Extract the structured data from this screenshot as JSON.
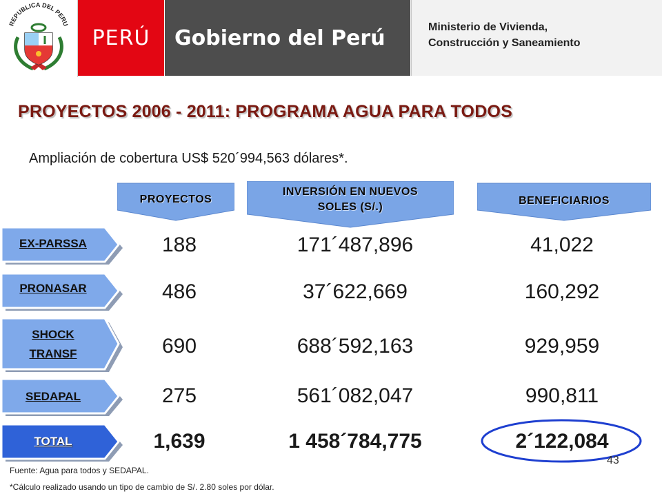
{
  "header": {
    "emblem_text": "REPUBLICA DEL PERU",
    "peru_label": "PERÚ",
    "gobierno_label": "Gobierno del Perú",
    "ministry_line1": "Ministerio de Vivienda,",
    "ministry_line2": "Construcción y Saneamiento"
  },
  "title": "PROYECTOS 2006 - 2011: PROGRAMA AGUA PARA TODOS",
  "subtitle": "Ampliación de cobertura US$ 520´994,563 dólares*.",
  "columns": {
    "proyectos": "PROYECTOS",
    "inversion_line1": "INVERSIÓN EN NUEVOS",
    "inversion_line2": "SOLES (S/.)",
    "beneficiarios": "BENEFICIARIOS"
  },
  "rows": [
    {
      "label": "EX-PARSSA",
      "proyectos": "188",
      "inversion": "171´487,896",
      "beneficiarios": "41,022"
    },
    {
      "label": "PRONASAR",
      "proyectos": "486",
      "inversion": "37´622,669",
      "beneficiarios": "160,292"
    },
    {
      "label_line1": "SHOCK",
      "label_line2": "TRANSF",
      "proyectos": "690",
      "inversion": "688´592,163",
      "beneficiarios": "929,959"
    },
    {
      "label": "SEDAPAL",
      "proyectos": "275",
      "inversion": "561´082,047",
      "beneficiarios": "990,811"
    }
  ],
  "total": {
    "label": "TOTAL",
    "proyectos": "1,639",
    "inversion": "1 458´784,775",
    "beneficiarios": "2´122,084"
  },
  "page_number": "43",
  "source": "Fuente: Agua para todos y SEDAPAL.",
  "note": "*Cálculo realizado usando un tipo de cambio de S/. 2.80 soles por dólar.",
  "colors": {
    "peru_red": "#e30613",
    "header_gray": "#4d4d4d",
    "arrow_blue": "#7aa5e6",
    "total_blue": "#2f62d8",
    "title_red": "#7a1a12",
    "highlight_ring": "#1e3fd0"
  }
}
